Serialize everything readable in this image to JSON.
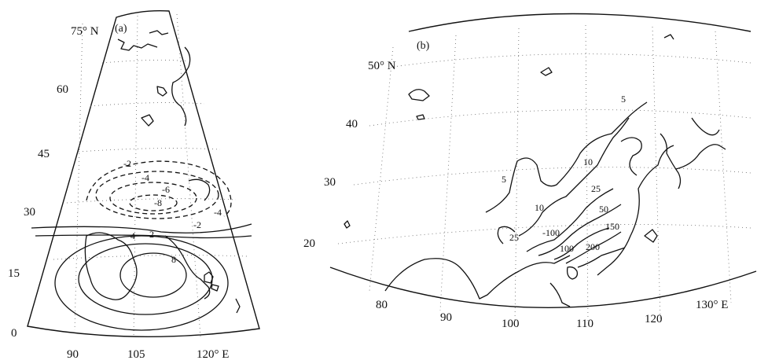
{
  "panel_a": {
    "panel_label": "(a)",
    "lat_labels": [
      "75° N",
      "60",
      "45",
      "30",
      "15",
      "0"
    ],
    "lon_labels": [
      "90",
      "105",
      "120° E"
    ],
    "contour_labels": [
      "-2",
      "-4",
      "-6",
      "-8",
      "-4",
      "-2",
      "4",
      "2",
      "8"
    ]
  },
  "panel_b": {
    "panel_label": "(b)",
    "lat_labels": [
      "50° N",
      "40",
      "30",
      "20"
    ],
    "lon_labels": [
      "80",
      "90",
      "100",
      "110",
      "120",
      "130° E"
    ],
    "contour_labels": [
      "5",
      "10",
      "25",
      "50",
      "100",
      "150",
      "200",
      "5",
      "10",
      "25",
      "-100"
    ]
  }
}
